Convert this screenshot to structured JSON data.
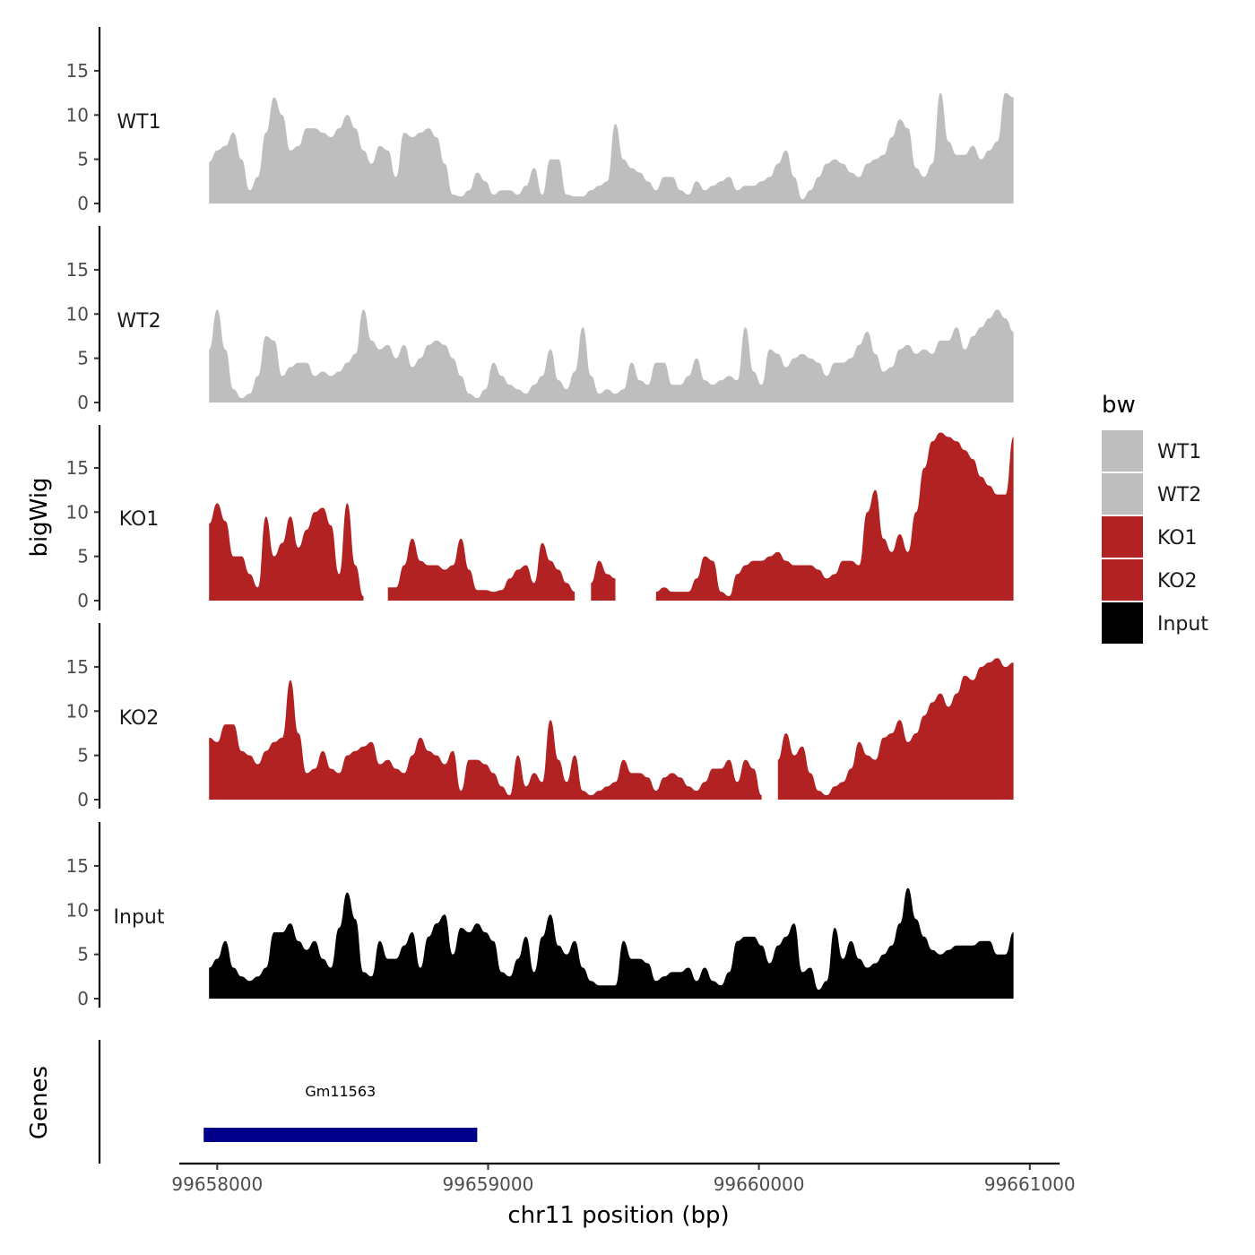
{
  "chart_data": {
    "type": "area",
    "title": "",
    "xlabel": "chr11 position (bp)",
    "ylabel": "bigWig",
    "genes_label": "Genes",
    "xlim": [
      99657860,
      99661110
    ],
    "ylim": [
      0,
      20
    ],
    "x_ticks": [
      99658000,
      99659000,
      99660000,
      99661000
    ],
    "x_tick_labels": [
      "99658000",
      "99659000",
      "99660000",
      "99661000"
    ],
    "y_ticks": [
      0,
      5,
      10,
      15
    ],
    "y_tick_labels": [
      "0",
      "5",
      "10",
      "15"
    ],
    "legend": {
      "title": "bw",
      "position": "right",
      "entries": [
        {
          "label": "WT1",
          "color": "#BEBEBE"
        },
        {
          "label": "WT2",
          "color": "#BEBEBE"
        },
        {
          "label": "KO1",
          "color": "#B22222"
        },
        {
          "label": "KO2",
          "color": "#B22222"
        },
        {
          "label": "Input",
          "color": "#000000"
        }
      ]
    },
    "x": [
      99657970,
      99658000,
      99658030,
      99658060,
      99658090,
      99658120,
      99658150,
      99658180,
      99658210,
      99658240,
      99658270,
      99658300,
      99658330,
      99658360,
      99658390,
      99658420,
      99658450,
      99658480,
      99658510,
      99658540,
      99658570,
      99658600,
      99658630,
      99658660,
      99658690,
      99658720,
      99658750,
      99658780,
      99658810,
      99658840,
      99658870,
      99658900,
      99658930,
      99658960,
      99658990,
      99659020,
      99659050,
      99659080,
      99659110,
      99659140,
      99659170,
      99659200,
      99659230,
      99659260,
      99659290,
      99659320,
      99659350,
      99659380,
      99659410,
      99659440,
      99659470,
      99659500,
      99659530,
      99659560,
      99659590,
      99659620,
      99659650,
      99659680,
      99659710,
      99659740,
      99659770,
      99659800,
      99659830,
      99659860,
      99659890,
      99659920,
      99659950,
      99659980,
      99660010,
      99660040,
      99660070,
      99660100,
      99660130,
      99660160,
      99660190,
      99660220,
      99660250,
      99660280,
      99660310,
      99660340,
      99660370,
      99660400,
      99660430,
      99660460,
      99660490,
      99660520,
      99660550,
      99660580,
      99660610,
      99660640,
      99660670,
      99660700,
      99660730,
      99660760,
      99660790,
      99660820,
      99660850,
      99660880,
      99660910,
      99660940
    ],
    "series": [
      {
        "name": "WT1",
        "color": "#BEBEBE",
        "values": [
          4.7,
          6.0,
          6.5,
          8.0,
          5.0,
          1.5,
          3.0,
          8.0,
          12.0,
          10.0,
          6.0,
          6.5,
          8.5,
          8.5,
          8.0,
          7.5,
          8.5,
          10.0,
          8.5,
          6.0,
          4.5,
          6.5,
          6.0,
          3.0,
          8.0,
          7.5,
          8.0,
          8.5,
          7.5,
          4.5,
          1.0,
          0.8,
          1.5,
          3.5,
          2.5,
          1.0,
          1.5,
          1.5,
          1.0,
          2.0,
          4.0,
          1.0,
          5.0,
          5.0,
          1.0,
          0.8,
          0.8,
          1.5,
          2.0,
          2.5,
          9.0,
          5.0,
          4.0,
          3.5,
          2.5,
          1.5,
          3.0,
          3.0,
          1.5,
          1.0,
          2.5,
          1.5,
          2.0,
          2.5,
          3.0,
          1.5,
          2.0,
          2.0,
          2.5,
          3.0,
          4.5,
          6.0,
          3.0,
          0.5,
          1.5,
          3.0,
          4.5,
          5.0,
          4.5,
          3.5,
          3.0,
          4.5,
          5.0,
          5.5,
          7.5,
          9.5,
          8.5,
          4.0,
          3.0,
          4.5,
          12.5,
          7.0,
          5.5,
          5.5,
          6.5,
          5.0,
          6.0,
          7.0,
          12.5,
          12.0
        ]
      },
      {
        "name": "WT2",
        "color": "#BEBEBE",
        "values": [
          6.0,
          10.5,
          6.0,
          1.5,
          0.5,
          1.0,
          3.0,
          7.5,
          7.0,
          3.0,
          4.0,
          4.5,
          4.5,
          3.0,
          3.5,
          3.0,
          3.5,
          4.5,
          5.5,
          10.5,
          7.0,
          6.0,
          6.5,
          5.0,
          6.5,
          4.0,
          5.0,
          6.5,
          7.0,
          6.5,
          5.0,
          3.0,
          1.0,
          0.5,
          1.5,
          4.5,
          3.0,
          2.0,
          1.5,
          1.0,
          2.0,
          3.0,
          6.0,
          2.5,
          1.5,
          3.5,
          8.5,
          3.0,
          1.0,
          1.5,
          1.0,
          1.5,
          4.5,
          2.5,
          2.0,
          4.5,
          4.5,
          2.0,
          2.0,
          3.0,
          5.0,
          2.5,
          2.0,
          2.5,
          3.0,
          2.5,
          8.5,
          3.5,
          2.0,
          6.0,
          5.5,
          4.0,
          5.0,
          5.5,
          5.0,
          4.5,
          3.0,
          4.5,
          4.5,
          5.0,
          6.5,
          8.0,
          5.5,
          3.5,
          4.0,
          6.0,
          6.5,
          5.5,
          6.0,
          5.5,
          7.0,
          7.0,
          8.5,
          6.0,
          7.5,
          8.5,
          9.5,
          10.5,
          9.5,
          8.0
        ]
      },
      {
        "name": "KO1",
        "color": "#B22222",
        "values": [
          8.7,
          11.0,
          9.0,
          5.0,
          5.0,
          3.0,
          1.5,
          9.5,
          5.0,
          6.5,
          9.5,
          6.0,
          8.0,
          10.0,
          10.5,
          8.5,
          3.0,
          11.0,
          4.0,
          0.5,
          null,
          null,
          1.5,
          1.5,
          4.0,
          7.0,
          4.5,
          4.0,
          4.0,
          3.5,
          4.0,
          7.0,
          3.5,
          1.2,
          1.2,
          1.0,
          1.2,
          2.5,
          3.5,
          4.0,
          2.0,
          6.5,
          4.5,
          3.5,
          2.0,
          1.0,
          null,
          2.0,
          4.5,
          3.0,
          2.5,
          null,
          null,
          null,
          null,
          1.0,
          1.5,
          1.0,
          1.0,
          1.0,
          2.5,
          5.0,
          4.5,
          1.0,
          0.5,
          3.0,
          4.0,
          4.5,
          4.5,
          5.0,
          5.5,
          4.5,
          4.0,
          4.0,
          4.0,
          3.5,
          2.5,
          3.0,
          4.5,
          4.5,
          4.0,
          10.0,
          12.5,
          7.0,
          5.5,
          7.5,
          5.5,
          10.0,
          15.0,
          18.0,
          19.0,
          18.5,
          18.0,
          17.0,
          16.0,
          14.0,
          13.0,
          12.0,
          12.0,
          18.5
        ]
      },
      {
        "name": "KO2",
        "color": "#B22222",
        "values": [
          7.0,
          6.5,
          8.5,
          8.5,
          5.5,
          5.0,
          4.0,
          5.5,
          6.5,
          7.0,
          13.5,
          7.5,
          3.0,
          3.5,
          5.5,
          3.5,
          3.0,
          5.0,
          5.5,
          6.0,
          6.5,
          4.0,
          4.5,
          3.5,
          3.0,
          5.0,
          7.0,
          5.5,
          5.0,
          4.0,
          5.5,
          1.0,
          4.5,
          4.5,
          4.0,
          3.0,
          1.5,
          0.5,
          5.0,
          1.5,
          3.0,
          2.0,
          9.0,
          4.5,
          2.0,
          5.0,
          1.0,
          0.5,
          1.0,
          1.5,
          2.0,
          4.5,
          3.0,
          3.0,
          2.5,
          1.0,
          2.5,
          3.0,
          2.5,
          1.5,
          1.0,
          2.0,
          3.5,
          3.5,
          4.5,
          2.0,
          4.5,
          3.5,
          0.5,
          null,
          4.5,
          7.5,
          5.0,
          6.0,
          3.0,
          1.0,
          0.5,
          1.5,
          2.0,
          3.5,
          6.5,
          5.0,
          4.5,
          7.0,
          7.5,
          9.0,
          6.5,
          7.5,
          9.5,
          11.0,
          12.0,
          10.5,
          12.0,
          14.0,
          13.5,
          15.0,
          15.5,
          16.0,
          15.0,
          15.5
        ]
      },
      {
        "name": "Input",
        "color": "#000000",
        "values": [
          3.5,
          4.5,
          6.5,
          3.5,
          2.5,
          2.0,
          2.5,
          3.5,
          7.5,
          7.5,
          8.5,
          6.5,
          5.5,
          6.5,
          4.5,
          3.5,
          8.0,
          12.0,
          9.0,
          3.0,
          2.5,
          6.5,
          4.5,
          4.5,
          6.0,
          7.5,
          3.5,
          7.0,
          8.5,
          9.5,
          5.0,
          8.0,
          7.5,
          8.5,
          7.5,
          6.5,
          3.0,
          2.5,
          4.5,
          7.0,
          3.0,
          7.0,
          9.5,
          6.0,
          5.0,
          6.5,
          3.5,
          2.0,
          1.5,
          1.5,
          1.5,
          6.5,
          4.5,
          4.5,
          4.0,
          2.0,
          2.5,
          3.0,
          3.0,
          3.5,
          2.0,
          3.5,
          2.0,
          1.5,
          3.0,
          6.5,
          7.0,
          7.0,
          6.0,
          4.0,
          6.0,
          7.0,
          8.5,
          3.0,
          3.5,
          1.0,
          2.0,
          8.0,
          4.5,
          6.5,
          4.5,
          3.5,
          4.0,
          5.0,
          6.0,
          8.5,
          12.5,
          9.0,
          7.0,
          5.5,
          5.0,
          5.5,
          6.0,
          6.0,
          6.0,
          6.5,
          6.5,
          5.0,
          5.0,
          7.5
        ]
      }
    ],
    "gene_track": {
      "genes": [
        {
          "name": "Gm11563",
          "start": 99657950,
          "end": 99658960,
          "color": "#00008B"
        }
      ]
    }
  }
}
